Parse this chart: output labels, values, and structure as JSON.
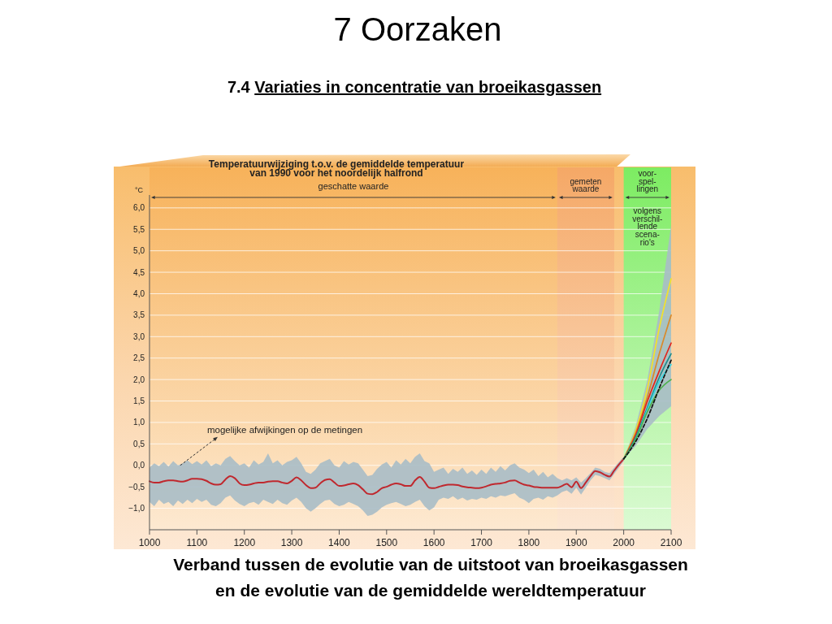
{
  "chart_data": {
    "type": "line",
    "title": "7 Oorzaken",
    "subtitle": "7.4 Variaties in concentratie van broeikasgassen",
    "ylabel": "°C",
    "annotations": [
      "Temperatuurwijziging t.o.v. de gemiddelde temperatuur\nvan 1990 voor het noordelijk halfrond",
      "Verband tussen de evolutie van de uitstoot van broeikasgassen\nen de evolutie van de gemiddelde wereldtemperatuur",
      {
        "text": "mogelijke afwijkingen op de metingen",
        "x": 1065,
        "y": 0.0
      },
      "volgens\nverschil-\nlende\nscena-\nrio's"
    ],
    "xlim": [
      1000,
      2100
    ],
    "xticks": [
      1000,
      1100,
      1200,
      1300,
      1400,
      1500,
      1600,
      1700,
      1800,
      1900,
      2000,
      2100
    ],
    "ylim": [
      -1.5,
      6.3
    ],
    "yticks": [
      {
        "value": -1,
        "label": "−1,0"
      },
      {
        "value": -0.5,
        "label": "−0,5"
      },
      {
        "value": 0,
        "label": "0,0"
      },
      {
        "value": 0.5,
        "label": "0,5"
      },
      {
        "value": 1,
        "label": "1,0"
      },
      {
        "value": 1.5,
        "label": "1,5"
      },
      {
        "value": 2,
        "label": "2,0"
      },
      {
        "value": 2.5,
        "label": "2,5"
      },
      {
        "value": 3,
        "label": "3,0"
      },
      {
        "value": 3.5,
        "label": "3,5"
      },
      {
        "value": 4,
        "label": "4,0"
      },
      {
        "value": 4.5,
        "label": "4,5"
      },
      {
        "value": 5,
        "label": "5,0"
      },
      {
        "value": 5.5,
        "label": "5,5"
      },
      {
        "value": 6,
        "label": "6,0"
      }
    ],
    "grid": "y",
    "bands": [
      {
        "axis": "x",
        "from": 1000,
        "to": 1860,
        "label": "geschatte waarde",
        "color": "#f7b25a"
      },
      {
        "axis": "x",
        "from": 1860,
        "to": 1980,
        "label": "gemeten\nwaarde",
        "color": "#f5a866"
      },
      {
        "axis": "x",
        "from": 2000,
        "to": 2100,
        "label": "voor-\nspel-\nlingen",
        "color": "#7dec62"
      }
    ],
    "series": [
      {
        "color": "#c0282e",
        "x": [
          1000,
          1010,
          1020,
          1030,
          1040,
          1050,
          1060,
          1070,
          1080,
          1090,
          1100,
          1110,
          1120,
          1130,
          1140,
          1150,
          1160,
          1170,
          1180,
          1190,
          1200,
          1210,
          1220,
          1230,
          1240,
          1250,
          1260,
          1270,
          1280,
          1290,
          1300,
          1310,
          1320,
          1330,
          1340,
          1350,
          1360,
          1370,
          1380,
          1390,
          1400,
          1410,
          1420,
          1430,
          1440,
          1450,
          1460,
          1470,
          1480,
          1490,
          1500,
          1510,
          1520,
          1530,
          1540,
          1550,
          1560,
          1570,
          1580,
          1590,
          1600,
          1610,
          1620,
          1630,
          1640,
          1650,
          1660,
          1670,
          1680,
          1690,
          1700,
          1710,
          1720,
          1730,
          1740,
          1750,
          1760,
          1770,
          1780,
          1790,
          1800,
          1810,
          1820,
          1830,
          1840,
          1850,
          1860,
          1870,
          1880,
          1890,
          1900,
          1910,
          1920,
          1930,
          1940,
          1950,
          1960,
          1970,
          1980,
          1990,
          2000
        ],
        "values": [
          -0.37,
          -0.4,
          -0.4,
          -0.37,
          -0.35,
          -0.35,
          -0.37,
          -0.38,
          -0.35,
          -0.31,
          -0.31,
          -0.32,
          -0.36,
          -0.42,
          -0.45,
          -0.44,
          -0.33,
          -0.25,
          -0.3,
          -0.42,
          -0.46,
          -0.45,
          -0.42,
          -0.4,
          -0.4,
          -0.38,
          -0.37,
          -0.37,
          -0.4,
          -0.42,
          -0.36,
          -0.28,
          -0.35,
          -0.46,
          -0.53,
          -0.52,
          -0.42,
          -0.34,
          -0.32,
          -0.4,
          -0.48,
          -0.47,
          -0.44,
          -0.42,
          -0.46,
          -0.56,
          -0.66,
          -0.67,
          -0.62,
          -0.53,
          -0.5,
          -0.45,
          -0.42,
          -0.44,
          -0.48,
          -0.48,
          -0.35,
          -0.27,
          -0.38,
          -0.52,
          -0.53,
          -0.5,
          -0.47,
          -0.45,
          -0.45,
          -0.46,
          -0.49,
          -0.51,
          -0.52,
          -0.53,
          -0.52,
          -0.49,
          -0.45,
          -0.43,
          -0.42,
          -0.4,
          -0.36,
          -0.35,
          -0.4,
          -0.45,
          -0.47,
          -0.5,
          -0.51,
          -0.52,
          -0.52,
          -0.52,
          -0.52,
          -0.48,
          -0.43,
          -0.51,
          -0.38,
          -0.53,
          -0.4,
          -0.25,
          -0.13,
          -0.16,
          -0.22,
          -0.26,
          -0.12,
          0.02,
          0.15
        ],
        "upper": [
          -0.05,
          0.05,
          -0.02,
          0.08,
          -0.03,
          0.1,
          0.0,
          0.05,
          0.12,
          0.03,
          0.1,
          0.02,
          0.12,
          -0.02,
          0.05,
          0.0,
          0.15,
          0.22,
          0.1,
          0.0,
          0.05,
          -0.05,
          0.12,
          0.02,
          0.08,
          0.28,
          0.05,
          0.12,
          0.0,
          0.08,
          0.12,
          0.2,
          0.05,
          -0.15,
          -0.2,
          -0.1,
          0.05,
          0.1,
          0.15,
          0.0,
          -0.05,
          0.1,
          0.02,
          0.08,
          0.05,
          -0.1,
          -0.25,
          -0.22,
          -0.08,
          0.02,
          0.08,
          -0.05,
          0.12,
          0.02,
          0.15,
          0.05,
          0.2,
          0.28,
          0.1,
          0.05,
          -0.15,
          -0.1,
          -0.05,
          -0.2,
          -0.08,
          -0.15,
          -0.05,
          -0.2,
          -0.12,
          -0.22,
          -0.1,
          -0.2,
          -0.05,
          -0.15,
          -0.02,
          -0.12,
          0.0,
          0.05,
          -0.05,
          -0.1,
          -0.18,
          -0.1,
          -0.25,
          -0.15,
          -0.28,
          -0.2,
          -0.3,
          -0.35,
          -0.3,
          -0.35,
          -0.28,
          -0.4,
          -0.3,
          -0.18,
          -0.05,
          -0.08,
          -0.15,
          -0.18,
          -0.05,
          0.08,
          0.2
        ],
        "lower": [
          -0.85,
          -0.95,
          -0.8,
          -0.9,
          -0.85,
          -0.95,
          -0.82,
          -0.9,
          -0.8,
          -0.88,
          -0.78,
          -0.85,
          -0.8,
          -0.92,
          -0.95,
          -0.88,
          -0.75,
          -0.7,
          -0.82,
          -0.9,
          -0.95,
          -0.88,
          -0.85,
          -0.92,
          -0.8,
          -0.85,
          -0.9,
          -0.8,
          -0.88,
          -0.92,
          -0.82,
          -0.75,
          -0.85,
          -1.0,
          -1.08,
          -1.0,
          -0.9,
          -0.82,
          -0.8,
          -0.9,
          -0.95,
          -0.92,
          -0.85,
          -0.9,
          -0.95,
          -1.05,
          -1.18,
          -1.15,
          -1.08,
          -0.98,
          -0.92,
          -0.88,
          -0.85,
          -0.9,
          -0.95,
          -0.92,
          -0.85,
          -0.8,
          -0.95,
          -1.05,
          -0.98,
          -0.8,
          -0.75,
          -0.78,
          -0.72,
          -0.8,
          -0.75,
          -0.82,
          -0.78,
          -0.8,
          -0.75,
          -0.78,
          -0.72,
          -0.75,
          -0.7,
          -0.72,
          -0.68,
          -0.65,
          -0.75,
          -0.8,
          -0.88,
          -0.78,
          -0.75,
          -0.8,
          -0.72,
          -0.75,
          -0.7,
          -0.62,
          -0.58,
          -0.66,
          -0.52,
          -0.68,
          -0.52,
          -0.35,
          -0.22,
          -0.25,
          -0.3,
          -0.35,
          -0.2,
          -0.05,
          0.1
        ]
      },
      {
        "color": "#f2e22a",
        "x": [
          2000,
          2025,
          2050,
          2075,
          2100
        ],
        "values": [
          0.15,
          0.8,
          1.8,
          3.2,
          4.35
        ],
        "lower": [
          0.15,
          0.45,
          0.85,
          1.15,
          1.38
        ],
        "upper": [
          0.15,
          0.9,
          2.0,
          3.6,
          5.6
        ]
      },
      {
        "color": "#d98a2b",
        "x": [
          2000,
          2025,
          2050,
          2075,
          2100
        ],
        "values": [
          0.15,
          0.75,
          1.6,
          2.6,
          3.5
        ]
      },
      {
        "color": "#e3241b",
        "x": [
          2000,
          2025,
          2050,
          2075,
          2100
        ],
        "values": [
          0.15,
          0.7,
          1.5,
          2.2,
          2.85
        ]
      },
      {
        "color": "#1e8c8c",
        "x": [
          2000,
          2025,
          2050,
          2075,
          2100
        ],
        "values": [
          0.15,
          0.65,
          1.35,
          2.05,
          2.6
        ]
      },
      {
        "color": "#3fd6e0",
        "x": [
          2000,
          2025,
          2050,
          2075,
          2100
        ],
        "values": [
          0.15,
          0.6,
          1.3,
          1.95,
          2.35
        ]
      },
      {
        "color": "#4cb04a",
        "x": [
          2000,
          2025,
          2050,
          2075,
          2100
        ],
        "values": [
          0.15,
          0.6,
          1.25,
          1.75,
          2.0
        ]
      },
      {
        "color": "#111111",
        "line_style": "dashed",
        "x": [
          2000,
          2025,
          2050,
          2075,
          2100
        ],
        "values": [
          0.15,
          0.55,
          1.1,
          1.8,
          2.45
        ]
      }
    ]
  }
}
